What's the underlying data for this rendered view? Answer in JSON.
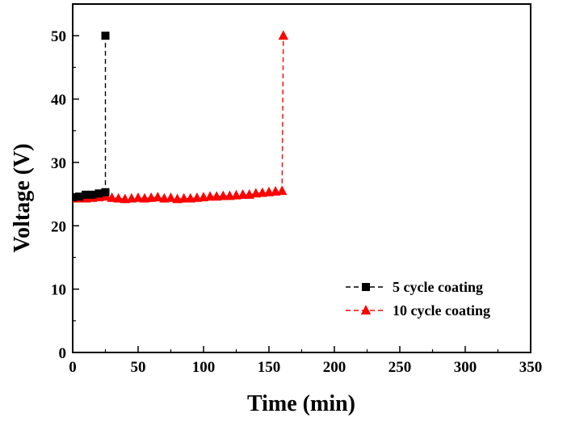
{
  "chart_data": {
    "type": "line",
    "xlabel": "Time (min)",
    "ylabel": "Voltage (V)",
    "xlim": [
      0,
      350
    ],
    "ylim": [
      0,
      55
    ],
    "x_ticks": [
      0,
      50,
      100,
      150,
      200,
      250,
      300,
      350
    ],
    "y_ticks": [
      0,
      10,
      20,
      30,
      40,
      50
    ],
    "grid": false,
    "legend_position": "bottom-right",
    "series": [
      {
        "name": "5 cycle coating",
        "color": "#000000",
        "marker": "square",
        "line_style": "dashed",
        "x": [
          0,
          5,
          10,
          15,
          20,
          25,
          25
        ],
        "y": [
          24.5,
          24.6,
          24.9,
          24.9,
          25.1,
          25.3,
          50
        ]
      },
      {
        "name": "10 cycle coating",
        "color": "#ff0000",
        "marker": "triangle",
        "line_style": "dashed",
        "x": [
          0,
          5,
          10,
          15,
          20,
          25,
          30,
          35,
          40,
          45,
          50,
          55,
          60,
          65,
          70,
          75,
          80,
          85,
          90,
          95,
          100,
          105,
          110,
          115,
          120,
          125,
          130,
          135,
          140,
          145,
          150,
          155,
          160,
          161
        ],
        "y": [
          24.3,
          24.3,
          24.3,
          24.4,
          24.5,
          24.6,
          24.4,
          24.3,
          24.2,
          24.3,
          24.4,
          24.3,
          24.4,
          24.5,
          24.3,
          24.4,
          24.2,
          24.3,
          24.3,
          24.4,
          24.5,
          24.6,
          24.6,
          24.7,
          24.7,
          24.8,
          24.9,
          24.9,
          25.1,
          25.2,
          25.3,
          25.4,
          25.5,
          50
        ]
      }
    ]
  }
}
